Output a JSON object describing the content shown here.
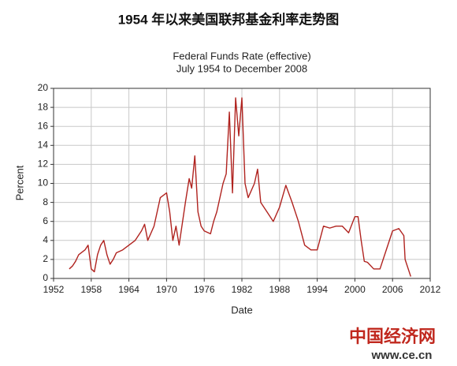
{
  "chart_data": {
    "type": "line",
    "title": "1954 年以来美国联邦基金利率走势图",
    "plot_title": "Federal Funds Rate (effective)",
    "plot_subtitle": "July 1954 to December 2008",
    "x_label": "Date",
    "y_label": "Percent",
    "x": [
      1954.5,
      1955,
      1955.5,
      1956,
      1957,
      1957.5,
      1958,
      1958.5,
      1959,
      1959.5,
      1960,
      1960.5,
      1961,
      1961.5,
      1962,
      1963,
      1964,
      1965,
      1966,
      1966.5,
      1967,
      1968,
      1969,
      1970,
      1970.5,
      1971,
      1971.5,
      1972,
      1973,
      1973.6,
      1974,
      1974.5,
      1975,
      1975.5,
      1976,
      1977,
      1977.5,
      1978,
      1979,
      1979.5,
      1980,
      1980.5,
      1981,
      1981.5,
      1982,
      1982.5,
      1983,
      1984,
      1984.5,
      1985,
      1986,
      1987,
      1988,
      1989,
      1990,
      1991,
      1992,
      1993,
      1994,
      1995,
      1996,
      1997,
      1998,
      1999,
      2000,
      2000.5,
      2001,
      2001.5,
      2002,
      2003,
      2004,
      2005,
      2006,
      2007,
      2007.8,
      2008,
      2008.9
    ],
    "series": [
      {
        "color": "#b0231f",
        "values": [
          1.0,
          1.3,
          1.8,
          2.5,
          3.0,
          3.5,
          1.0,
          0.7,
          2.5,
          3.5,
          4.0,
          2.5,
          1.5,
          2.0,
          2.7,
          3.0,
          3.5,
          4.0,
          5.0,
          5.7,
          4.0,
          5.5,
          8.5,
          9.0,
          7.0,
          4.0,
          5.5,
          3.5,
          8.0,
          10.5,
          9.5,
          12.9,
          7.0,
          5.5,
          5.0,
          4.7,
          6.0,
          7.0,
          10.0,
          11.0,
          17.5,
          9.0,
          19.0,
          15.0,
          19.0,
          10.0,
          8.5,
          10.0,
          11.5,
          8.0,
          7.0,
          6.0,
          7.5,
          9.8,
          8.0,
          6.0,
          3.5,
          3.0,
          3.0,
          5.5,
          5.3,
          5.5,
          5.5,
          4.8,
          6.5,
          6.5,
          4.0,
          1.8,
          1.7,
          1.0,
          1.0,
          3.0,
          5.0,
          5.25,
          4.5,
          2.0,
          0.2
        ]
      }
    ],
    "xlim": [
      1952,
      2012
    ],
    "xticks": [
      1952,
      1958,
      1964,
      1970,
      1976,
      1982,
      1988,
      1994,
      2000,
      2006,
      2012
    ],
    "ylim": [
      0,
      20
    ],
    "yticks": [
      0,
      2,
      4,
      6,
      8,
      10,
      12,
      14,
      16,
      18,
      20
    ],
    "grid": true,
    "watermark": {
      "logo": "中国经济网",
      "url": "www.ce.cn"
    }
  }
}
